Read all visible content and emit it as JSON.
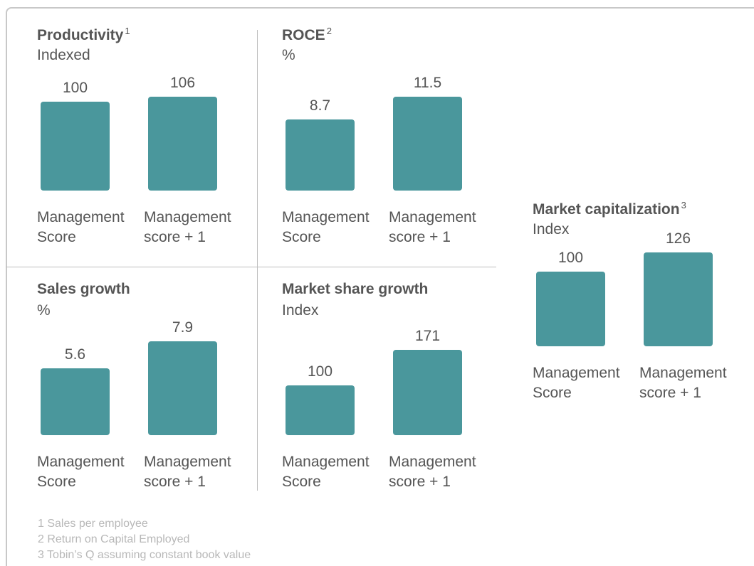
{
  "chart_data": [
    {
      "type": "bar",
      "title": "Productivity",
      "title_note": "1",
      "subtitle": "Indexed",
      "categories": [
        "Management Score",
        "Management score + 1"
      ],
      "values": [
        100,
        106
      ],
      "color": "#4a979c",
      "ylim": [
        0,
        106
      ]
    },
    {
      "type": "bar",
      "title": "ROCE",
      "title_note": "2",
      "subtitle": "%",
      "categories": [
        "Management Score",
        "Management score + 1"
      ],
      "values": [
        8.7,
        11.5
      ],
      "color": "#4a979c",
      "ylim": [
        0,
        11.5
      ]
    },
    {
      "type": "bar",
      "title": "Sales growth",
      "subtitle": "%",
      "categories": [
        "Management Score",
        "Management score + 1"
      ],
      "values": [
        5.6,
        7.9
      ],
      "color": "#4a979c",
      "ylim": [
        0,
        7.9
      ]
    },
    {
      "type": "bar",
      "title": "Market share growth",
      "subtitle": "Index",
      "categories": [
        "Management Score",
        "Management score + 1"
      ],
      "values": [
        100,
        171
      ],
      "color": "#4a979c",
      "ylim": [
        0,
        188
      ]
    },
    {
      "type": "bar",
      "title": "Market capitalization",
      "title_note": "3",
      "subtitle": "Index",
      "categories": [
        "Management Score",
        "Management score + 1"
      ],
      "values": [
        100,
        126
      ],
      "color": "#4a979c",
      "ylim": [
        0,
        126
      ]
    }
  ],
  "footnotes": [
    "1 Sales per employee",
    "2 Return on Capital Employed",
    "3 Tobin’s Q assuming constant book value"
  ]
}
